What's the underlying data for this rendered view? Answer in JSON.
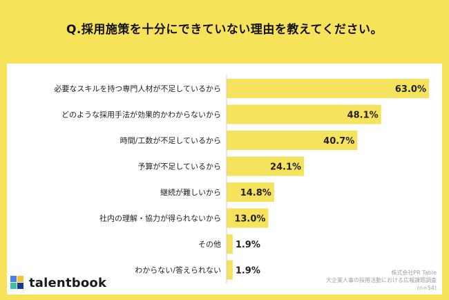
{
  "title": "Q.採用施策を十分にできていない理由を教えてください。",
  "brand": {
    "name": "talentbook",
    "colors": [
      "#4a7fe6",
      "#f5c431",
      "#40bfa3",
      "#1d3a8a"
    ]
  },
  "source": {
    "line1": "株式会社PR Table",
    "line2": "大企業人事の採用活動における広報課題調査",
    "line3": "(n=54)"
  },
  "colors": {
    "background": "#f7e35a",
    "bar": "#f5e25d",
    "axis": "#cccccc"
  },
  "chart_data": {
    "type": "bar",
    "orientation": "horizontal",
    "categories": [
      "必要なスキルを持つ専門人材が不足しているから",
      "どのような採用手法が効果的かわからないから",
      "時間/工数が不足しているから",
      "予算が不足しているから",
      "継続が難しいから",
      "社内の理解・協力が得られないから",
      "その他",
      "わからない/答えられない"
    ],
    "values": [
      63.0,
      48.1,
      40.7,
      24.1,
      14.8,
      13.0,
      1.9,
      1.9
    ],
    "value_labels": [
      "63.0%",
      "48.1%",
      "40.7%",
      "24.1%",
      "14.8%",
      "13.0%",
      "1.9%",
      "1.9%"
    ],
    "unit": "%",
    "xlim": [
      0,
      63
    ],
    "grid": false
  }
}
